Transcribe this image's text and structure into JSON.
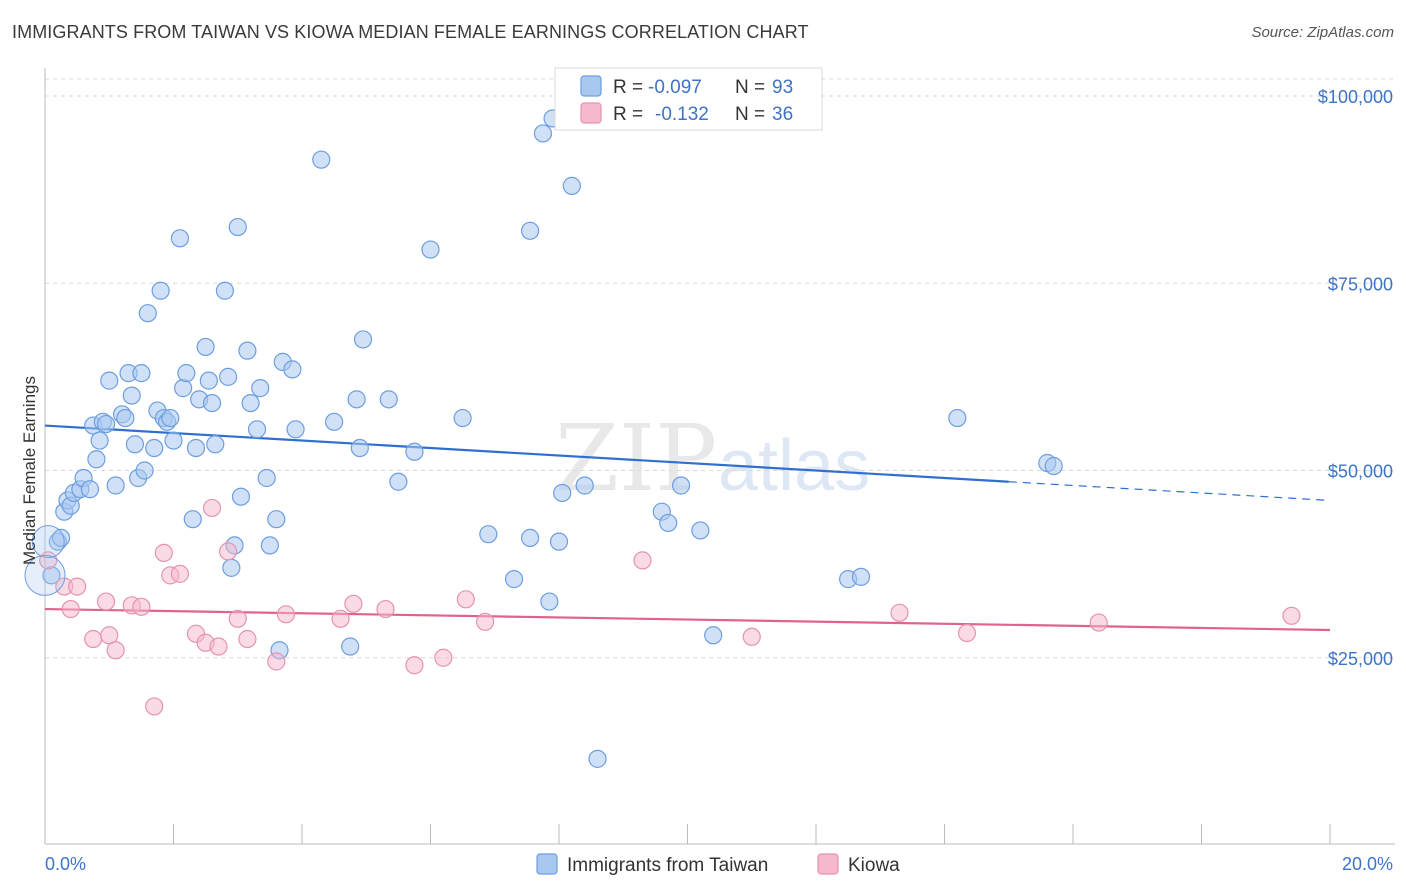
{
  "header": {
    "title": "IMMIGRANTS FROM TAIWAN VS KIOWA MEDIAN FEMALE EARNINGS CORRELATION CHART",
    "source": "Source: ZipAtlas.com"
  },
  "watermark": {
    "zip": "ZIP",
    "atlas": "atlas"
  },
  "legend_top": [
    {
      "r_label": "R =",
      "r_value": "-0.097",
      "n_label": "N =",
      "n_value": "93",
      "color": "#a9c8f0"
    },
    {
      "r_label": "R =",
      "r_value": "-0.132",
      "n_label": "N =",
      "n_value": "36",
      "color": "#f5b8cc"
    }
  ],
  "legend_bottom": [
    {
      "label": "Immigrants from Taiwan",
      "color": "#a9c8f0"
    },
    {
      "label": "Kiowa",
      "color": "#f5b8cc"
    }
  ],
  "chart_data": {
    "type": "scatter",
    "title": "IMMIGRANTS FROM TAIWAN VS KIOWA MEDIAN FEMALE EARNINGS CORRELATION CHART",
    "xlabel": "",
    "ylabel": "Median Female Earnings",
    "xlim": [
      0,
      20
    ],
    "ylim": [
      0,
      105000
    ],
    "x_tick_labels": [
      "0.0%",
      "20.0%"
    ],
    "y_ticks": [
      25000,
      50000,
      75000,
      100000
    ],
    "y_tick_labels": [
      "$25,000",
      "$50,000",
      "$75,000",
      "$100,000"
    ],
    "grid": true,
    "legend_position": "top-center",
    "series": [
      {
        "name": "Immigrants from Taiwan",
        "color": "#6d9ee0",
        "fill": "#a9c8f0",
        "trend": {
          "x": [
            0,
            15
          ],
          "y": [
            56000,
            48500
          ],
          "dashed_to": [
            20,
            46000
          ]
        },
        "points": [
          [
            0.1,
            36000
          ],
          [
            0.2,
            40500
          ],
          [
            0.25,
            41000
          ],
          [
            0.3,
            44500
          ],
          [
            0.35,
            46000
          ],
          [
            0.4,
            45300
          ],
          [
            0.45,
            47000
          ],
          [
            0.55,
            47500
          ],
          [
            0.6,
            49000
          ],
          [
            0.7,
            47500
          ],
          [
            0.75,
            56000
          ],
          [
            0.8,
            51500
          ],
          [
            0.85,
            54000
          ],
          [
            0.9,
            56500
          ],
          [
            0.95,
            56200
          ],
          [
            1.0,
            62000
          ],
          [
            1.1,
            48000
          ],
          [
            1.2,
            57500
          ],
          [
            1.25,
            57000
          ],
          [
            1.3,
            63000
          ],
          [
            1.35,
            60000
          ],
          [
            1.4,
            53500
          ],
          [
            1.45,
            49000
          ],
          [
            1.5,
            63000
          ],
          [
            1.55,
            50000
          ],
          [
            1.6,
            71000
          ],
          [
            1.7,
            53000
          ],
          [
            1.75,
            58000
          ],
          [
            1.8,
            74000
          ],
          [
            1.85,
            57000
          ],
          [
            1.9,
            56500
          ],
          [
            1.95,
            57000
          ],
          [
            2.0,
            54000
          ],
          [
            2.1,
            81000
          ],
          [
            2.15,
            61000
          ],
          [
            2.2,
            63000
          ],
          [
            2.3,
            43500
          ],
          [
            2.35,
            53000
          ],
          [
            2.4,
            59500
          ],
          [
            2.5,
            66500
          ],
          [
            2.55,
            62000
          ],
          [
            2.6,
            59000
          ],
          [
            2.65,
            53500
          ],
          [
            2.8,
            74000
          ],
          [
            2.85,
            62500
          ],
          [
            2.9,
            37000
          ],
          [
            2.95,
            40000
          ],
          [
            3.0,
            82500
          ],
          [
            3.05,
            46500
          ],
          [
            3.15,
            66000
          ],
          [
            3.2,
            59000
          ],
          [
            3.3,
            55500
          ],
          [
            3.35,
            61000
          ],
          [
            3.45,
            49000
          ],
          [
            3.5,
            40000
          ],
          [
            3.6,
            43500
          ],
          [
            3.65,
            26000
          ],
          [
            3.7,
            64500
          ],
          [
            3.85,
            63500
          ],
          [
            3.9,
            55500
          ],
          [
            4.3,
            91500
          ],
          [
            4.5,
            56500
          ],
          [
            4.75,
            26500
          ],
          [
            4.85,
            59500
          ],
          [
            4.9,
            53000
          ],
          [
            4.95,
            67500
          ],
          [
            5.35,
            59500
          ],
          [
            5.5,
            48500
          ],
          [
            5.75,
            52500
          ],
          [
            6.0,
            79500
          ],
          [
            6.5,
            57000
          ],
          [
            6.9,
            41500
          ],
          [
            7.3,
            35500
          ],
          [
            7.55,
            82000
          ],
          [
            7.55,
            41000
          ],
          [
            7.75,
            95000
          ],
          [
            7.85,
            32500
          ],
          [
            7.9,
            97000
          ],
          [
            8.0,
            40500
          ],
          [
            8.05,
            47000
          ],
          [
            8.2,
            88000
          ],
          [
            8.4,
            48000
          ],
          [
            8.6,
            11500
          ],
          [
            9.6,
            44500
          ],
          [
            9.7,
            43000
          ],
          [
            9.9,
            48000
          ],
          [
            10.2,
            42000
          ],
          [
            10.4,
            28000
          ],
          [
            12.5,
            35500
          ],
          [
            12.7,
            35800
          ],
          [
            14.2,
            57000
          ],
          [
            15.6,
            51000
          ],
          [
            15.7,
            50600
          ]
        ]
      },
      {
        "name": "Kiowa",
        "color": "#e693b0",
        "fill": "#f5b8cc",
        "trend": {
          "x": [
            0,
            20
          ],
          "y": [
            31500,
            28700
          ]
        },
        "points": [
          [
            0.05,
            38000
          ],
          [
            0.3,
            34500
          ],
          [
            0.4,
            31500
          ],
          [
            0.5,
            34500
          ],
          [
            0.75,
            27500
          ],
          [
            0.95,
            32500
          ],
          [
            1.0,
            28000
          ],
          [
            1.1,
            26000
          ],
          [
            1.35,
            32000
          ],
          [
            1.5,
            31800
          ],
          [
            1.7,
            18500
          ],
          [
            1.85,
            39000
          ],
          [
            1.95,
            36000
          ],
          [
            2.1,
            36200
          ],
          [
            2.35,
            28200
          ],
          [
            2.5,
            27000
          ],
          [
            2.6,
            45000
          ],
          [
            2.7,
            26500
          ],
          [
            2.85,
            39200
          ],
          [
            3.0,
            30200
          ],
          [
            3.15,
            27500
          ],
          [
            3.6,
            24500
          ],
          [
            3.75,
            30800
          ],
          [
            4.6,
            30200
          ],
          [
            4.8,
            32200
          ],
          [
            5.3,
            31500
          ],
          [
            5.75,
            24000
          ],
          [
            6.2,
            25000
          ],
          [
            6.55,
            32800
          ],
          [
            6.85,
            29800
          ],
          [
            9.3,
            38000
          ],
          [
            11.0,
            27800
          ],
          [
            13.3,
            31000
          ],
          [
            14.35,
            28300
          ],
          [
            16.4,
            29700
          ],
          [
            19.4,
            30600
          ]
        ]
      }
    ]
  }
}
